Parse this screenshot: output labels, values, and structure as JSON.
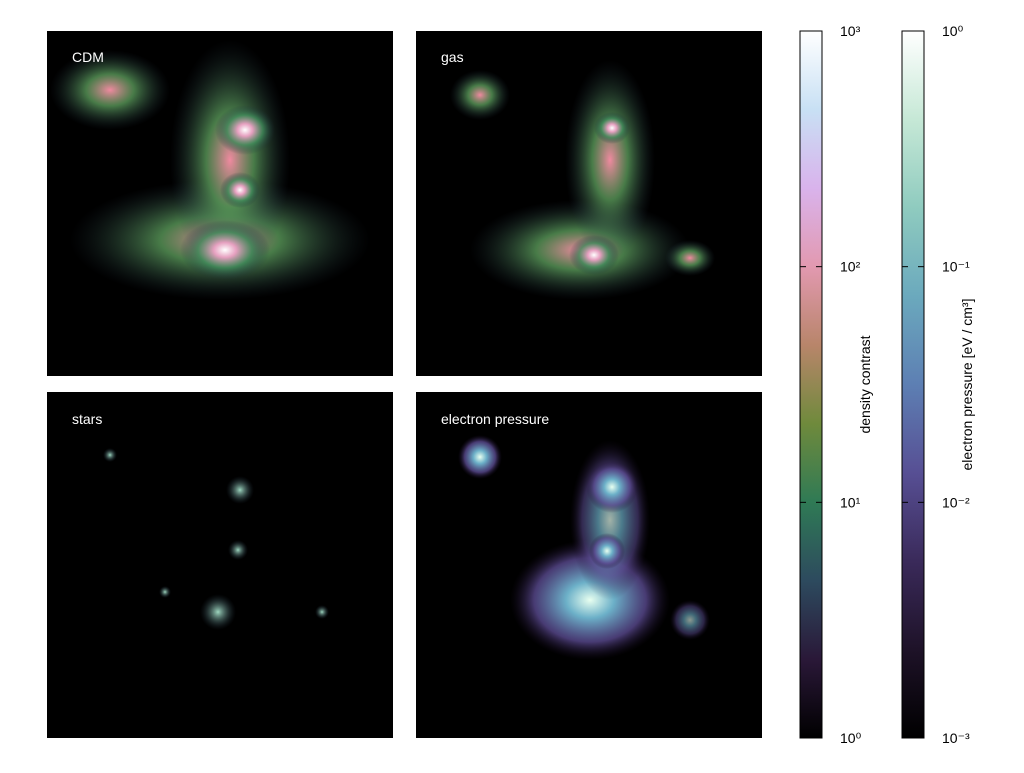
{
  "panels": [
    {
      "label": "CDM"
    },
    {
      "label": "gas"
    },
    {
      "label": "stars"
    },
    {
      "label": "electron pressure"
    }
  ],
  "colorbars": [
    {
      "label": "density contrast",
      "scale": "log",
      "ylim": [
        1,
        1000
      ],
      "yticks": [
        {
          "value": 1,
          "label": "10⁰"
        },
        {
          "value": 10,
          "label": "10¹"
        },
        {
          "value": 100,
          "label": "10²"
        },
        {
          "value": 1000,
          "label": "10³"
        }
      ],
      "colormap": [
        "#000000",
        "#2a1838",
        "#2d4a5e",
        "#2f7a55",
        "#6f8a3c",
        "#b8856a",
        "#e299b0",
        "#d9b3ec",
        "#c8e0f4",
        "#ffffff"
      ]
    },
    {
      "label": "electron pressure [eV / cm³]",
      "scale": "log",
      "ylim": [
        0.001,
        1
      ],
      "yticks": [
        {
          "value": 0.001,
          "label": "10⁻³"
        },
        {
          "value": 0.01,
          "label": "10⁻²"
        },
        {
          "value": 0.1,
          "label": "10⁻¹"
        },
        {
          "value": 1,
          "label": "10⁰"
        }
      ],
      "colormap": [
        "#000000",
        "#1e1228",
        "#3a2a5a",
        "#574f94",
        "#5d7fb3",
        "#6ba9bd",
        "#8fcbbf",
        "#c6e8d6",
        "#ffffff"
      ]
    }
  ]
}
